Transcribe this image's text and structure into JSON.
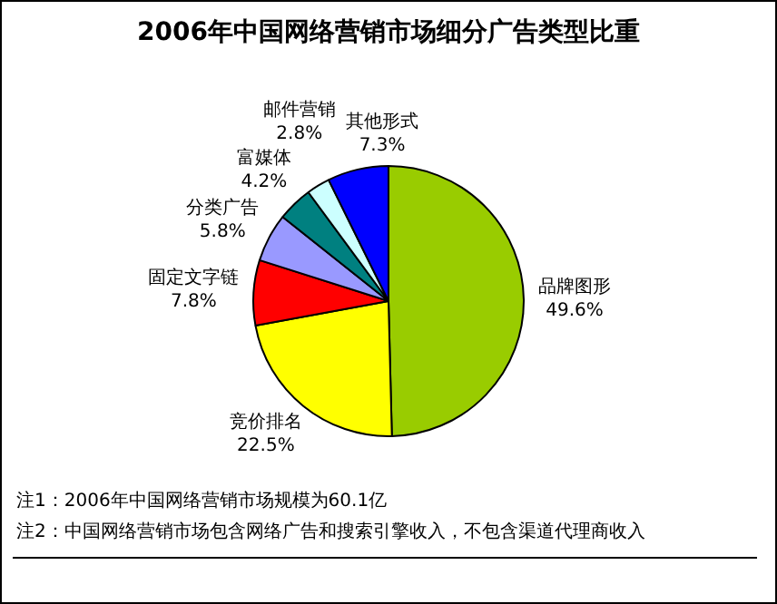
{
  "chart_data": {
    "type": "pie",
    "title": "2006年中国网络营销市场细分广告类型比重",
    "categories": [
      "品牌图形",
      "竞价排名",
      "固定文字链",
      "分类广告",
      "富媒体",
      "邮件营销",
      "其他形式"
    ],
    "values": [
      49.6,
      22.5,
      7.8,
      5.8,
      4.2,
      2.8,
      7.3
    ],
    "value_labels": [
      "49.6%",
      "22.5%",
      "7.8%",
      "5.8%",
      "4.2%",
      "2.8%",
      "7.3%"
    ],
    "colors": [
      "#99cc00",
      "#ffff00",
      "#ff0000",
      "#9999ff",
      "#008080",
      "#ccffff",
      "#0000ff"
    ],
    "legend": false,
    "annotations": [
      "注1：2006年中国网络营销市场规模为60.1亿",
      "注2：中国网络营销市场包含网络广告和搜索引擎收入，不包含渠道代理商收入"
    ]
  }
}
